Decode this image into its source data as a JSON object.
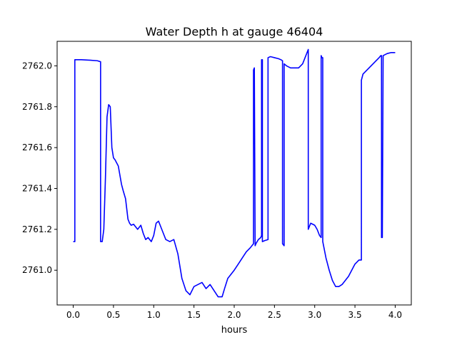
{
  "chart_data": {
    "type": "line",
    "title": "Water Depth h at gauge 46404",
    "xlabel": "hours",
    "ylabel": "",
    "xlim": [
      -0.2,
      4.2
    ],
    "ylim": [
      2760.83,
      2762.12
    ],
    "xticks": [
      0.0,
      0.5,
      1.0,
      1.5,
      2.0,
      2.5,
      3.0,
      3.5,
      4.0
    ],
    "xtick_labels": [
      "0.0",
      "0.5",
      "1.0",
      "1.5",
      "2.0",
      "2.5",
      "3.0",
      "3.5",
      "4.0"
    ],
    "yticks": [
      2761.0,
      2761.2,
      2761.4,
      2761.6,
      2761.8,
      2762.0
    ],
    "ytick_labels": [
      "2761.0",
      "2761.2",
      "2761.4",
      "2761.6",
      "2761.8",
      "2762.0"
    ],
    "grid": false,
    "series": [
      {
        "color": "#0000ff",
        "x": [
          0.0,
          0.02,
          0.02,
          0.1,
          0.2,
          0.3,
          0.34,
          0.34,
          0.36,
          0.38,
          0.4,
          0.42,
          0.44,
          0.46,
          0.47,
          0.48,
          0.5,
          0.52,
          0.56,
          0.6,
          0.62,
          0.65,
          0.68,
          0.7,
          0.72,
          0.75,
          0.8,
          0.84,
          0.87,
          0.9,
          0.93,
          0.97,
          1.0,
          1.03,
          1.06,
          1.09,
          1.12,
          1.15,
          1.2,
          1.25,
          1.3,
          1.35,
          1.4,
          1.45,
          1.5,
          1.55,
          1.6,
          1.65,
          1.7,
          1.75,
          1.8,
          1.85,
          1.88,
          1.92,
          1.96,
          2.0,
          2.05,
          2.1,
          2.15,
          2.2,
          2.24,
          2.24,
          2.25,
          2.26,
          2.27,
          2.27,
          2.3,
          2.33,
          2.34,
          2.34,
          2.35,
          2.35,
          2.38,
          2.42,
          2.42,
          2.45,
          2.5,
          2.55,
          2.58,
          2.6,
          2.6,
          2.62,
          2.62,
          2.65,
          2.7,
          2.8,
          2.85,
          2.88,
          2.9,
          2.92,
          2.92,
          2.95,
          3.0,
          3.03,
          3.06,
          3.08,
          3.08,
          3.09,
          3.1,
          3.1,
          3.14,
          3.18,
          3.22,
          3.26,
          3.3,
          3.34,
          3.38,
          3.42,
          3.46,
          3.5,
          3.55,
          3.58,
          3.58,
          3.6,
          3.65,
          3.7,
          3.75,
          3.8,
          3.82,
          3.83,
          3.83,
          3.84,
          3.85,
          3.85,
          3.9,
          3.95,
          4.0
        ],
        "y": [
          2761.14,
          2761.14,
          2762.03,
          2762.03,
          2762.028,
          2762.025,
          2762.02,
          2761.14,
          2761.14,
          2761.2,
          2761.45,
          2761.75,
          2761.81,
          2761.8,
          2761.7,
          2761.6,
          2761.55,
          2761.54,
          2761.51,
          2761.42,
          2761.39,
          2761.35,
          2761.25,
          2761.23,
          2761.22,
          2761.225,
          2761.2,
          2761.22,
          2761.18,
          2761.15,
          2761.16,
          2761.14,
          2761.17,
          2761.23,
          2761.24,
          2761.21,
          2761.18,
          2761.15,
          2761.14,
          2761.15,
          2761.08,
          2760.96,
          2760.9,
          2760.88,
          2760.92,
          2760.93,
          2760.94,
          2760.91,
          2760.93,
          2760.9,
          2760.87,
          2760.87,
          2760.91,
          2760.96,
          2760.98,
          2761.0,
          2761.03,
          2761.06,
          2761.09,
          2761.11,
          2761.13,
          2761.98,
          2761.99,
          2761.12,
          2761.13,
          2761.13,
          2761.15,
          2761.16,
          2761.17,
          2762.03,
          2762.03,
          2761.14,
          2761.145,
          2761.15,
          2762.04,
          2762.045,
          2762.04,
          2762.035,
          2762.03,
          2762.025,
          2761.13,
          2761.12,
          2762.01,
          2762.0,
          2761.99,
          2761.99,
          2762.01,
          2762.04,
          2762.06,
          2762.08,
          2761.2,
          2761.23,
          2761.22,
          2761.2,
          2761.17,
          2761.16,
          2762.05,
          2762.04,
          2762.04,
          2761.14,
          2761.06,
          2761.0,
          2760.95,
          2760.92,
          2760.92,
          2760.93,
          2760.95,
          2760.97,
          2761.0,
          2761.03,
          2761.05,
          2761.05,
          2761.93,
          2761.96,
          2761.98,
          2762.0,
          2762.02,
          2762.04,
          2762.05,
          2762.05,
          2761.16,
          2761.16,
          2762.05,
          2762.05,
          2762.06,
          2762.065,
          2762.065
        ]
      }
    ]
  }
}
